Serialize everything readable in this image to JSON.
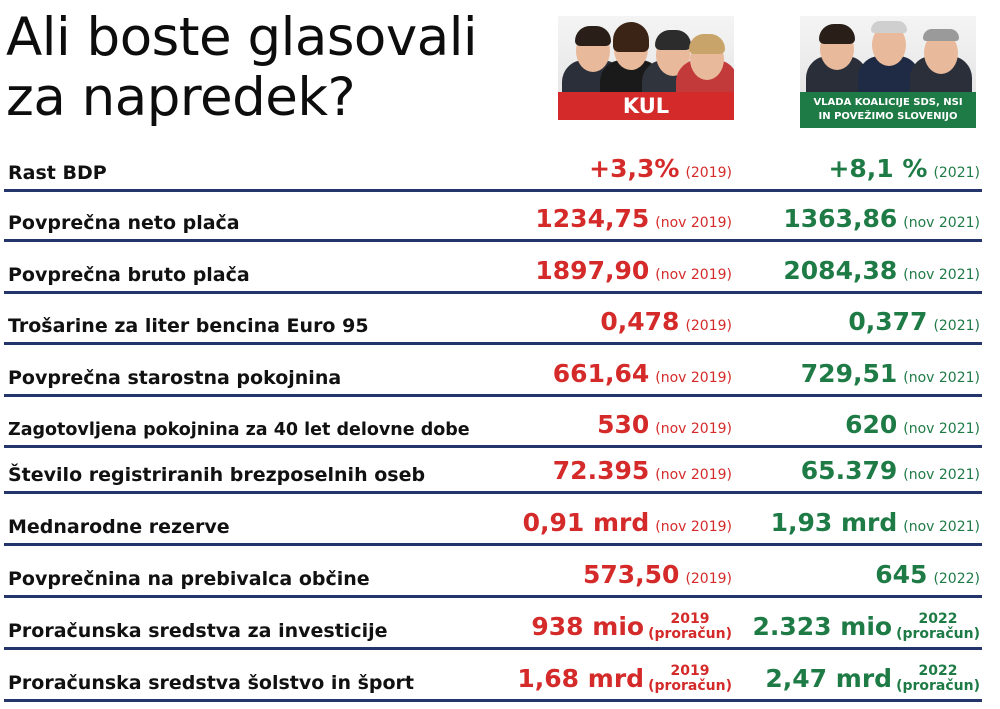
{
  "title": {
    "line1": "Ali boste glasovali",
    "line2": "za napredek?"
  },
  "columns": {
    "kul": {
      "label": "KUL",
      "color": "#d42a2a"
    },
    "government": {
      "label_line1": "VLADA KOALICIJE SDS, NSI",
      "label_line2": "IN POVEŽIMO SLOVENIJO",
      "color": "#1f7b46"
    }
  },
  "rule_color": "#23356b",
  "rows": [
    {
      "label": "Rast BDP",
      "kul_value": "+3,3%",
      "kul_note": "(2019)",
      "gov_value": "+8,1 %",
      "gov_note": "(2021)"
    },
    {
      "label": "Povprečna neto plača",
      "kul_value": "1234,75",
      "kul_note": "(nov 2019)",
      "gov_value": "1363,86",
      "gov_note": "(nov 2021)"
    },
    {
      "label": "Povprečna bruto plača",
      "kul_value": "1897,90",
      "kul_note": "(nov 2019)",
      "gov_value": "2084,38",
      "gov_note": "(nov 2021)"
    },
    {
      "label": "Trošarine za liter bencina Euro 95",
      "kul_value": "0,478",
      "kul_note": "(2019)",
      "gov_value": "0,377",
      "gov_note": "(2021)"
    },
    {
      "label": "Povprečna starostna pokojnina",
      "kul_value": "661,64",
      "kul_note": "(nov 2019)",
      "gov_value": "729,51",
      "gov_note": "(nov 2021)"
    },
    {
      "label": "Zagotovljena pokojnina za 40 let delovne dobe",
      "kul_value": "530",
      "kul_note": "(nov 2019)",
      "gov_value": "620",
      "gov_note": "(nov 2021)"
    },
    {
      "label": "Število registriranih brezposelnih oseb",
      "kul_value": "72.395",
      "kul_note": "(nov 2019)",
      "gov_value": "65.379",
      "gov_note": "(nov 2021)"
    },
    {
      "label": "Mednarodne rezerve",
      "kul_value": "0,91 mrd",
      "kul_note": "(nov 2019)",
      "gov_value": "1,93 mrd",
      "gov_note": "(nov 2021)"
    },
    {
      "label": "Povprečnina na prebivalca občine",
      "kul_value": "573,50",
      "kul_note": "(2019)",
      "gov_value": "645",
      "gov_note": "(2022)"
    },
    {
      "label": "Proračunska sredstva za investicije",
      "kul_value": "938 mio",
      "kul_year": "2019",
      "kul_note": "(proračun)",
      "gov_value": "2.323 mio",
      "gov_year": "2022",
      "gov_note": "(proračun)"
    },
    {
      "label": "Proračunska sredstva šolstvo in šport",
      "kul_value": "1,68 mrd",
      "kul_year": "2019",
      "kul_note": "(proračun)",
      "gov_value": "2,47 mrd",
      "gov_year": "2022",
      "gov_note": "(proračun)"
    }
  ]
}
